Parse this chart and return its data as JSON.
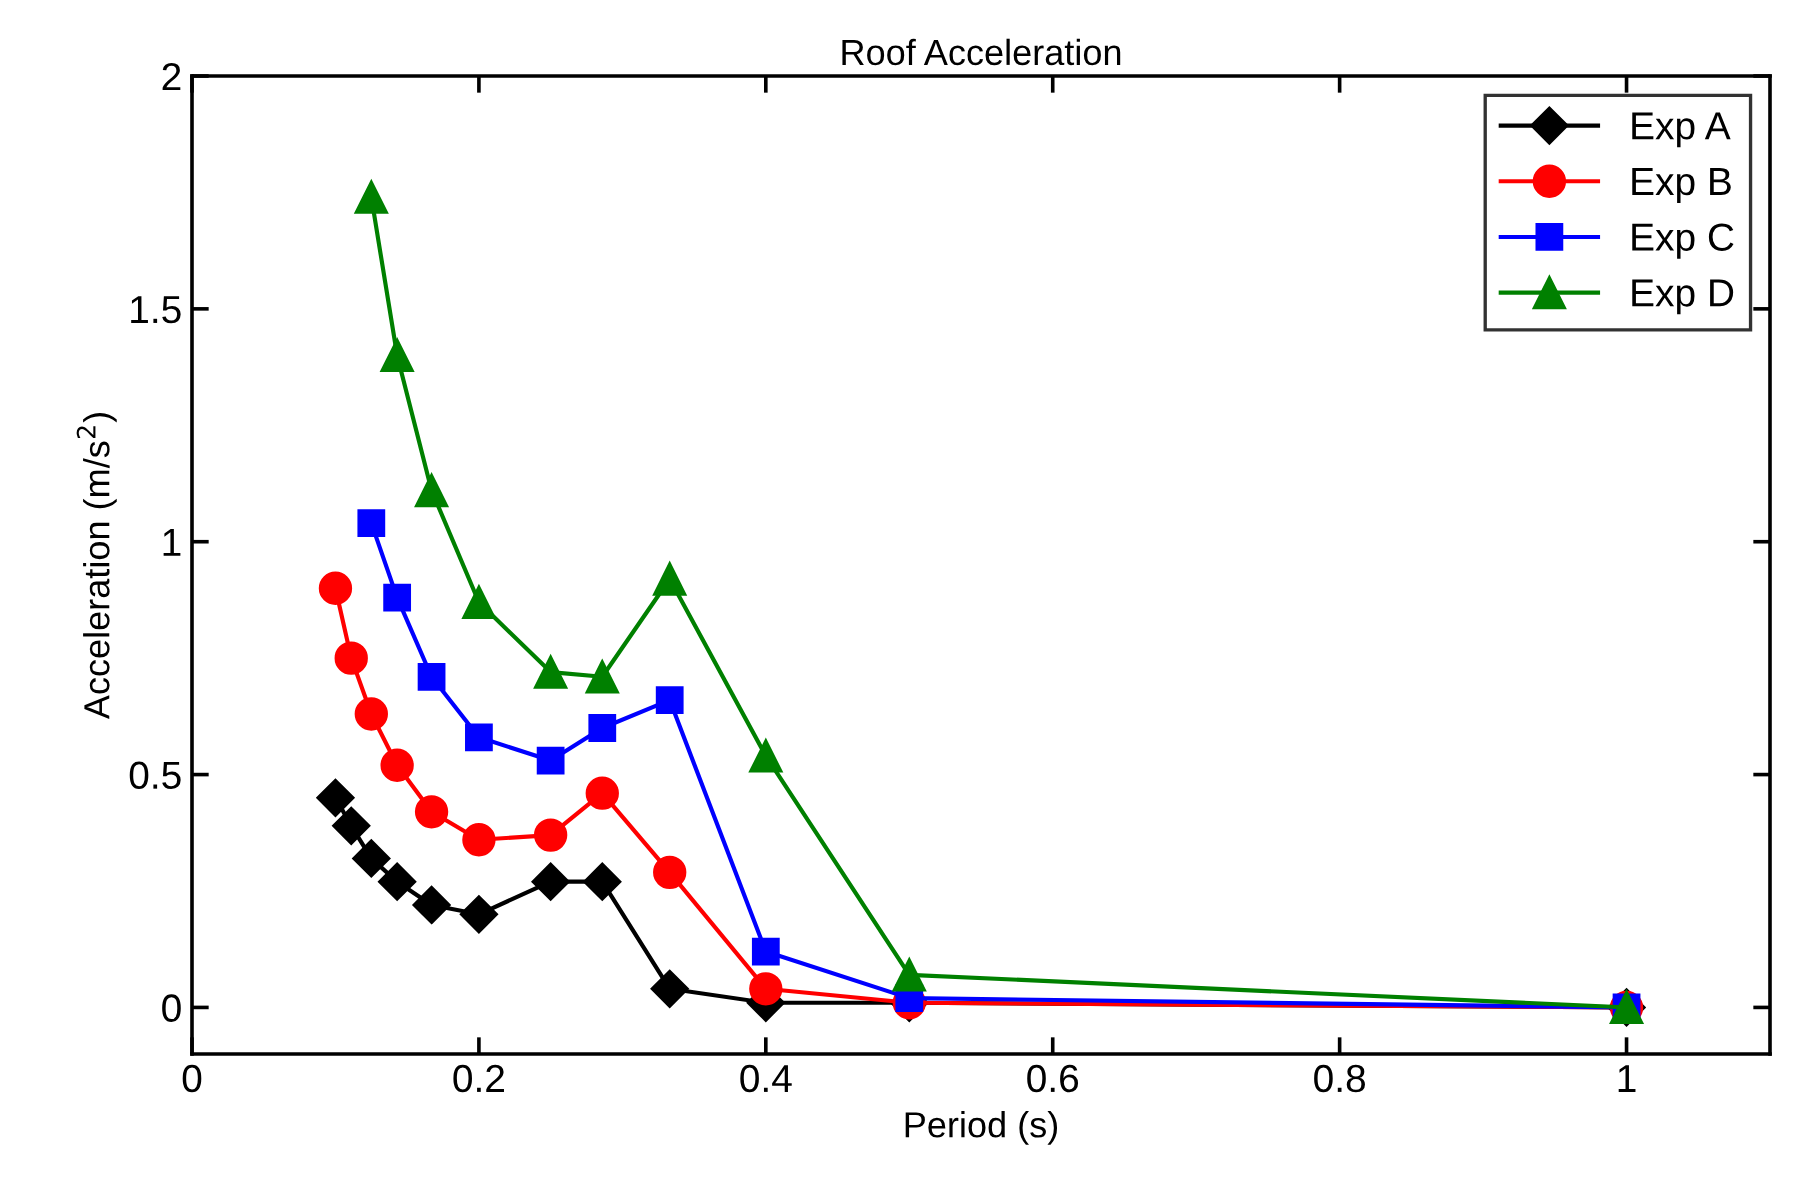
{
  "chart_data": {
    "type": "line",
    "title": "Roof Acceleration",
    "xlabel": "Period (s)",
    "ylabel": "Acceleration (m/s$^{2}$)",
    "xlim": [
      0,
      1.1
    ],
    "ylim": [
      -0.1,
      2
    ],
    "xticks": [
      0,
      0.2,
      0.4,
      0.6,
      0.8,
      1
    ],
    "yticks": [
      0,
      0.5,
      1,
      1.5,
      2
    ],
    "grid": false,
    "legend": "top right",
    "line_style": "solid",
    "series": [
      {
        "name": "Exp A",
        "color": "#000000",
        "marker": "diamond",
        "x": [
          0.1,
          0.111,
          0.125,
          0.143,
          0.167,
          0.2,
          0.25,
          0.286,
          0.333,
          0.4,
          0.5,
          1
        ],
        "values": [
          0.45,
          0.39,
          0.32,
          0.27,
          0.22,
          0.2,
          0.27,
          0.27,
          0.04,
          0.01,
          0.01,
          0
        ]
      },
      {
        "name": "Exp B",
        "color": "#ff0000",
        "marker": "circle",
        "x": [
          0.1,
          0.111,
          0.125,
          0.143,
          0.167,
          0.2,
          0.25,
          0.286,
          0.333,
          0.4,
          0.5,
          1
        ],
        "values": [
          0.9,
          0.75,
          0.63,
          0.52,
          0.42,
          0.36,
          0.37,
          0.46,
          0.29,
          0.04,
          0.01,
          0
        ]
      },
      {
        "name": "Exp C",
        "color": "#0000ff",
        "marker": "square",
        "x": [
          0.125,
          0.143,
          0.167,
          0.2,
          0.25,
          0.286,
          0.333,
          0.4,
          0.5,
          1
        ],
        "values": [
          1.04,
          0.88,
          0.71,
          0.58,
          0.53,
          0.6,
          0.66,
          0.12,
          0.02,
          0
        ]
      },
      {
        "name": "Exp D",
        "color": "#008000",
        "marker": "triangle",
        "x": [
          0.125,
          0.143,
          0.167,
          0.2,
          0.25,
          0.286,
          0.333,
          0.4,
          0.5,
          1
        ],
        "values": [
          1.74,
          1.4,
          1.11,
          0.87,
          0.72,
          0.71,
          0.92,
          0.54,
          0.07,
          0
        ]
      }
    ]
  }
}
